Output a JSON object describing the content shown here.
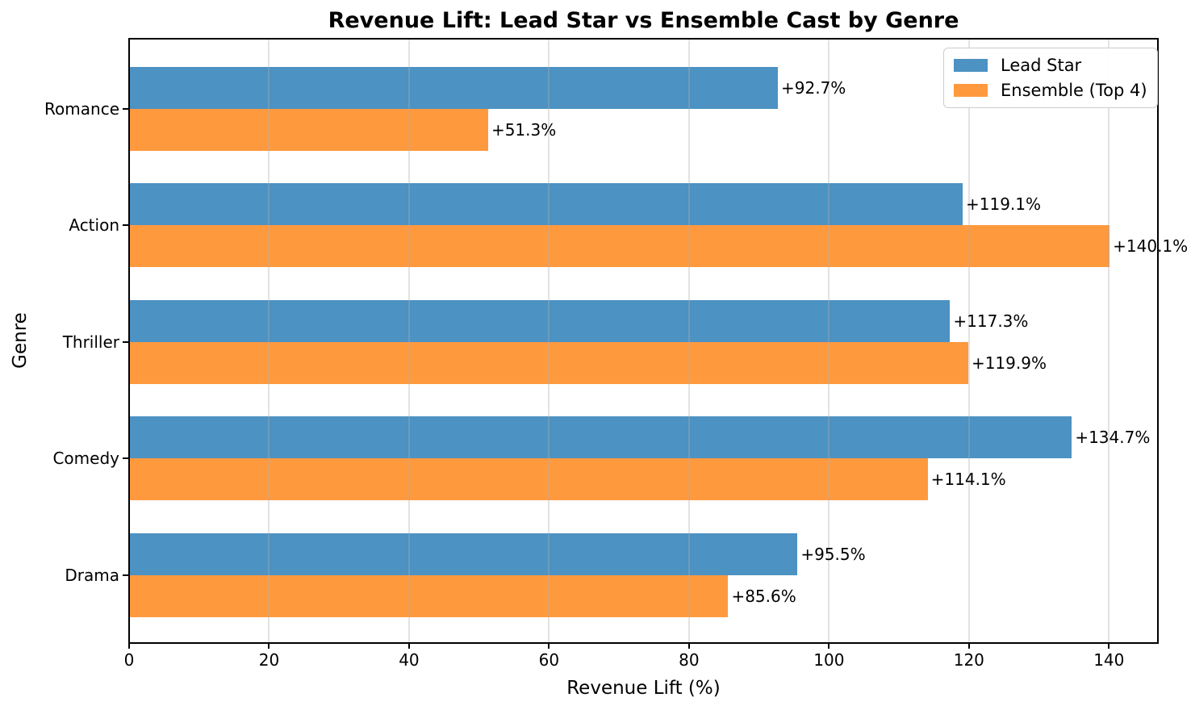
{
  "chart_data": {
    "type": "bar",
    "orientation": "horizontal",
    "title": "Revenue Lift: Lead Star vs Ensemble Cast by Genre",
    "xlabel": "Revenue Lift (%)",
    "ylabel": "Genre",
    "categories": [
      "Romance",
      "Action",
      "Thriller",
      "Comedy",
      "Drama"
    ],
    "series": [
      {
        "name": "Lead Star",
        "color": "#4C92C3",
        "values": [
          92.7,
          119.1,
          117.3,
          134.7,
          95.5
        ],
        "labels": [
          "+92.7%",
          "+119.1%",
          "+117.3%",
          "+134.7%",
          "+95.5%"
        ]
      },
      {
        "name": "Ensemble (Top 4)",
        "color": "#FF993E",
        "values": [
          51.3,
          140.1,
          119.9,
          114.1,
          85.6
        ],
        "labels": [
          "+51.3%",
          "+140.1%",
          "+119.9%",
          "+114.1%",
          "+85.6%"
        ]
      }
    ],
    "x_ticks": [
      0,
      20,
      40,
      60,
      80,
      100,
      120,
      140
    ],
    "xlim": [
      0,
      147
    ],
    "grid": "vertical",
    "legend_position": "upper-right",
    "colors": {
      "grid": "rgba(176,176,176,0.35)",
      "spine": "#000000",
      "text": "#000000",
      "background": "#ffffff"
    }
  }
}
